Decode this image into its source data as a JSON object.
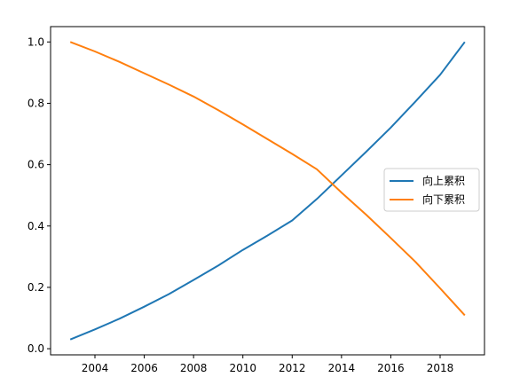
{
  "chart_data": {
    "type": "line",
    "title": "",
    "xlabel": "",
    "ylabel": "",
    "x": [
      2003,
      2004,
      2005,
      2006,
      2007,
      2008,
      2009,
      2010,
      2011,
      2012,
      2013,
      2014,
      2015,
      2016,
      2017,
      2018,
      2019
    ],
    "xlim": [
      2002.2,
      2019.8
    ],
    "ylim": [
      -0.02,
      1.05
    ],
    "xticks": [
      "2004",
      "2006",
      "2008",
      "2010",
      "2012",
      "2014",
      "2016",
      "2018"
    ],
    "yticks": [
      "0.0",
      "0.2",
      "0.4",
      "0.6",
      "0.8",
      "1.0"
    ],
    "grid": false,
    "legend_position": "center-right",
    "series": [
      {
        "name": "向上累积",
        "color": "#1f77b4",
        "values": [
          0.03,
          0.063,
          0.098,
          0.137,
          0.178,
          0.224,
          0.271,
          0.322,
          0.369,
          0.418,
          0.488,
          0.565,
          0.642,
          0.721,
          0.806,
          0.893,
          1.0
        ]
      },
      {
        "name": "向下累积",
        "color": "#ff7f0e",
        "values": [
          1.0,
          0.969,
          0.935,
          0.898,
          0.861,
          0.822,
          0.778,
          0.731,
          0.683,
          0.635,
          0.585,
          0.509,
          0.437,
          0.361,
          0.283,
          0.197,
          0.109
        ]
      }
    ]
  }
}
